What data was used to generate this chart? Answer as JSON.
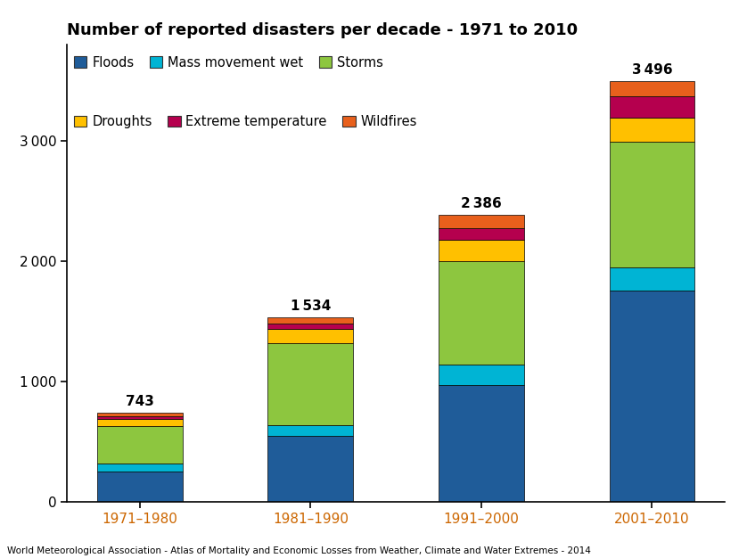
{
  "categories": [
    "1971–1980",
    "1981–1990",
    "1991–2000",
    "2001–2010"
  ],
  "totals": [
    743,
    1534,
    2386,
    3496
  ],
  "series": {
    "Floods": [
      258,
      548,
      971,
      1757
    ],
    "Mass movement wet": [
      62,
      90,
      175,
      193
    ],
    "Storms": [
      310,
      680,
      855,
      1046
    ],
    "Droughts": [
      65,
      120,
      175,
      200
    ],
    "Extreme temperature": [
      18,
      46,
      98,
      176
    ],
    "Wildfires": [
      30,
      50,
      112,
      124
    ]
  },
  "colors": {
    "Floods": "#1f5c99",
    "Mass movement wet": "#00b4d4",
    "Storms": "#8dc63f",
    "Droughts": "#ffc000",
    "Extreme temperature": "#b5004e",
    "Wildfires": "#e8601c"
  },
  "title": "Number of reported disasters per decade - 1971 to 2010",
  "footer": "World Meteorological Association - Atlas of Mortality and Economic Losses from Weather, Climate and Water Extremes - 2014",
  "ylim": [
    0,
    3800
  ],
  "yticks": [
    0,
    1000,
    2000,
    3000
  ],
  "bar_width": 0.5,
  "background_color": "#ffffff",
  "legend_row1": [
    "Floods",
    "Mass movement wet",
    "Storms"
  ],
  "legend_row2": [
    "Droughts",
    "Extreme temperature",
    "Wildfires"
  ]
}
